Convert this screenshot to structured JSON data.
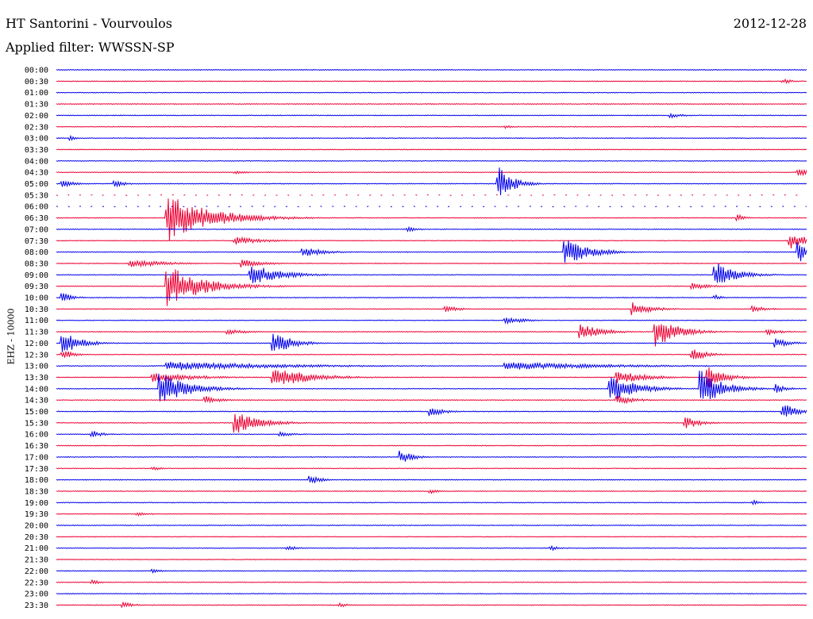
{
  "header": {
    "station": "HT Santorini - Vourvoulos",
    "date": "2012-12-28",
    "filter": "Applied filter: WWSSN-SP"
  },
  "chart_data": {
    "type": "line",
    "ylabel": "EHZ - 10000",
    "colors": {
      "blue": "#0000ee",
      "red": "#ee0033"
    },
    "rows": [
      {
        "time": "00:00",
        "color": "blue"
      },
      {
        "time": "00:30",
        "color": "red",
        "events": [
          {
            "pos": 0.97,
            "amp": 3,
            "dur": 0.03
          }
        ]
      },
      {
        "time": "01:00",
        "color": "blue"
      },
      {
        "time": "01:30",
        "color": "red"
      },
      {
        "time": "02:00",
        "color": "blue",
        "events": [
          {
            "pos": 0.82,
            "amp": 3,
            "dur": 0.04
          }
        ]
      },
      {
        "time": "02:30",
        "color": "red",
        "events": [
          {
            "pos": 0.6,
            "amp": 2,
            "dur": 0.02
          }
        ]
      },
      {
        "time": "03:00",
        "color": "blue",
        "events": [
          {
            "pos": 0.02,
            "amp": 3,
            "dur": 0.02
          }
        ]
      },
      {
        "time": "03:30",
        "color": "red"
      },
      {
        "time": "04:00",
        "color": "blue"
      },
      {
        "time": "04:30",
        "color": "red",
        "events": [
          {
            "pos": 0.24,
            "amp": 2,
            "dur": 0.03
          },
          {
            "pos": 0.99,
            "amp": 6,
            "dur": 0.03
          }
        ]
      },
      {
        "time": "05:00",
        "color": "blue",
        "events": [
          {
            "pos": 0.01,
            "amp": 5,
            "dur": 0.03
          },
          {
            "pos": 0.08,
            "amp": 4,
            "dur": 0.03
          },
          {
            "pos": 0.59,
            "amp": 22,
            "dur": 0.04
          }
        ]
      },
      {
        "time": "05:30",
        "color": "red",
        "dashed": true
      },
      {
        "time": "06:00",
        "color": "blue",
        "dashed": true
      },
      {
        "time": "06:30",
        "color": "red",
        "events": [
          {
            "pos": 0.15,
            "amp": 30,
            "dur": 0.12
          },
          {
            "pos": 0.91,
            "amp": 4,
            "dur": 0.02
          }
        ]
      },
      {
        "time": "07:00",
        "color": "blue",
        "events": [
          {
            "pos": 0.47,
            "amp": 3,
            "dur": 0.03
          }
        ]
      },
      {
        "time": "07:30",
        "color": "red",
        "events": [
          {
            "pos": 0.24,
            "amp": 5,
            "dur": 0.08
          },
          {
            "pos": 0.98,
            "amp": 10,
            "dur": 0.05
          }
        ]
      },
      {
        "time": "08:00",
        "color": "blue",
        "events": [
          {
            "pos": 0.33,
            "amp": 6,
            "dur": 0.06
          },
          {
            "pos": 0.68,
            "amp": 16,
            "dur": 0.07
          },
          {
            "pos": 0.99,
            "amp": 14,
            "dur": 0.03
          }
        ]
      },
      {
        "time": "08:30",
        "color": "red",
        "events": [
          {
            "pos": 0.1,
            "amp": 5,
            "dur": 0.1
          },
          {
            "pos": 0.25,
            "amp": 5,
            "dur": 0.06
          }
        ]
      },
      {
        "time": "09:00",
        "color": "blue",
        "events": [
          {
            "pos": 0.26,
            "amp": 14,
            "dur": 0.08
          },
          {
            "pos": 0.88,
            "amp": 16,
            "dur": 0.06
          }
        ]
      },
      {
        "time": "09:30",
        "color": "red",
        "events": [
          {
            "pos": 0.15,
            "amp": 26,
            "dur": 0.1
          },
          {
            "pos": 0.85,
            "amp": 4,
            "dur": 0.05
          }
        ]
      },
      {
        "time": "10:00",
        "color": "blue",
        "events": [
          {
            "pos": 0.01,
            "amp": 6,
            "dur": 0.03
          },
          {
            "pos": 0.88,
            "amp": 3,
            "dur": 0.02
          }
        ]
      },
      {
        "time": "10:30",
        "color": "red",
        "events": [
          {
            "pos": 0.52,
            "amp": 4,
            "dur": 0.04
          },
          {
            "pos": 0.77,
            "amp": 9,
            "dur": 0.05
          },
          {
            "pos": 0.93,
            "amp": 4,
            "dur": 0.04
          }
        ]
      },
      {
        "time": "11:00",
        "color": "blue",
        "events": [
          {
            "pos": 0.6,
            "amp": 5,
            "dur": 0.05
          }
        ]
      },
      {
        "time": "11:30",
        "color": "red",
        "events": [
          {
            "pos": 0.23,
            "amp": 4,
            "dur": 0.05
          },
          {
            "pos": 0.7,
            "amp": 10,
            "dur": 0.06
          },
          {
            "pos": 0.8,
            "amp": 20,
            "dur": 0.06
          },
          {
            "pos": 0.95,
            "amp": 4,
            "dur": 0.04
          }
        ]
      },
      {
        "time": "12:00",
        "color": "blue",
        "events": [
          {
            "pos": 0.01,
            "amp": 14,
            "dur": 0.05
          },
          {
            "pos": 0.29,
            "amp": 16,
            "dur": 0.05
          },
          {
            "pos": 0.96,
            "amp": 6,
            "dur": 0.04
          }
        ]
      },
      {
        "time": "12:30",
        "color": "red",
        "events": [
          {
            "pos": 0.01,
            "amp": 6,
            "dur": 0.03
          },
          {
            "pos": 0.85,
            "amp": 8,
            "dur": 0.04
          }
        ]
      },
      {
        "time": "13:00",
        "color": "blue",
        "events": [
          {
            "pos": 0.15,
            "amp": 6,
            "dur": 0.3
          },
          {
            "pos": 0.6,
            "amp": 5,
            "dur": 0.3
          }
        ]
      },
      {
        "time": "13:30",
        "color": "red",
        "events": [
          {
            "pos": 0.13,
            "amp": 6,
            "dur": 0.12
          },
          {
            "pos": 0.29,
            "amp": 14,
            "dur": 0.1
          },
          {
            "pos": 0.75,
            "amp": 8,
            "dur": 0.08
          },
          {
            "pos": 0.87,
            "amp": 14,
            "dur": 0.05
          }
        ]
      },
      {
        "time": "14:00",
        "color": "blue",
        "events": [
          {
            "pos": 0.14,
            "amp": 20,
            "dur": 0.08
          },
          {
            "pos": 0.74,
            "amp": 18,
            "dur": 0.07
          },
          {
            "pos": 0.86,
            "amp": 24,
            "dur": 0.06
          },
          {
            "pos": 0.96,
            "amp": 6,
            "dur": 0.03
          }
        ]
      },
      {
        "time": "14:30",
        "color": "red",
        "events": [
          {
            "pos": 0.2,
            "amp": 5,
            "dur": 0.04
          },
          {
            "pos": 0.75,
            "amp": 6,
            "dur": 0.05
          }
        ]
      },
      {
        "time": "15:00",
        "color": "blue",
        "events": [
          {
            "pos": 0.5,
            "amp": 6,
            "dur": 0.04
          },
          {
            "pos": 0.97,
            "amp": 10,
            "dur": 0.04
          }
        ]
      },
      {
        "time": "15:30",
        "color": "red",
        "events": [
          {
            "pos": 0.24,
            "amp": 14,
            "dur": 0.07
          },
          {
            "pos": 0.84,
            "amp": 8,
            "dur": 0.04
          }
        ]
      },
      {
        "time": "16:00",
        "color": "blue",
        "events": [
          {
            "pos": 0.05,
            "amp": 4,
            "dur": 0.03
          },
          {
            "pos": 0.3,
            "amp": 3,
            "dur": 0.04
          }
        ]
      },
      {
        "time": "16:30",
        "color": "red"
      },
      {
        "time": "17:00",
        "color": "blue",
        "events": [
          {
            "pos": 0.46,
            "amp": 10,
            "dur": 0.03
          }
        ]
      },
      {
        "time": "17:30",
        "color": "red",
        "events": [
          {
            "pos": 0.13,
            "amp": 3,
            "dur": 0.02
          }
        ]
      },
      {
        "time": "18:00",
        "color": "blue",
        "events": [
          {
            "pos": 0.34,
            "amp": 6,
            "dur": 0.03
          }
        ]
      },
      {
        "time": "18:30",
        "color": "red",
        "events": [
          {
            "pos": 0.5,
            "amp": 3,
            "dur": 0.02
          }
        ]
      },
      {
        "time": "19:00",
        "color": "blue",
        "events": [
          {
            "pos": 0.93,
            "amp": 3,
            "dur": 0.02
          }
        ]
      },
      {
        "time": "19:30",
        "color": "red",
        "events": [
          {
            "pos": 0.11,
            "amp": 2,
            "dur": 0.04
          }
        ]
      },
      {
        "time": "20:00",
        "color": "blue"
      },
      {
        "time": "20:30",
        "color": "red"
      },
      {
        "time": "21:00",
        "color": "blue",
        "events": [
          {
            "pos": 0.31,
            "amp": 3,
            "dur": 0.03
          },
          {
            "pos": 0.66,
            "amp": 3,
            "dur": 0.03
          }
        ]
      },
      {
        "time": "21:30",
        "color": "red"
      },
      {
        "time": "22:00",
        "color": "blue",
        "events": [
          {
            "pos": 0.13,
            "amp": 3,
            "dur": 0.02
          }
        ]
      },
      {
        "time": "22:30",
        "color": "red",
        "events": [
          {
            "pos": 0.05,
            "amp": 3,
            "dur": 0.02
          }
        ]
      },
      {
        "time": "23:00",
        "color": "blue"
      },
      {
        "time": "23:30",
        "color": "red",
        "events": [
          {
            "pos": 0.09,
            "amp": 4,
            "dur": 0.03
          },
          {
            "pos": 0.38,
            "amp": 3,
            "dur": 0.02
          }
        ]
      }
    ]
  }
}
